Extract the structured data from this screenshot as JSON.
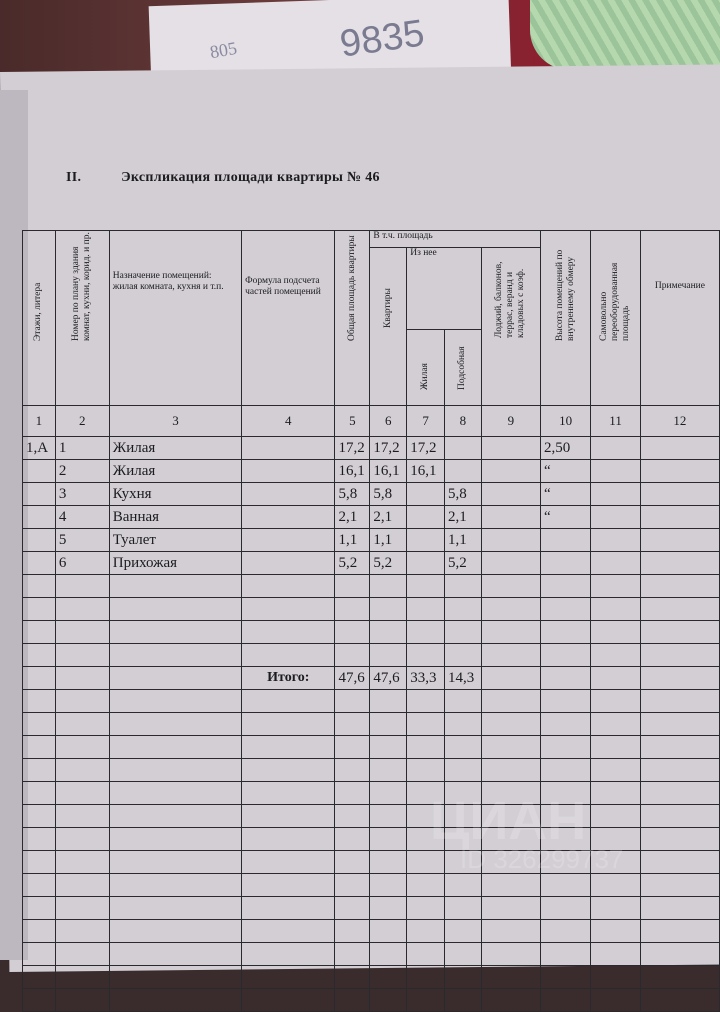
{
  "background": {
    "scribble": "9835",
    "scribble_small": "805"
  },
  "document": {
    "section_number": "II.",
    "title": "Экспликация площади квартиры № 46",
    "headers": {
      "c1": "Этажи, литера",
      "c2": "Номер по плану здания комнат, кухни, корид. и пр.",
      "c3": "Назначение помещений: жилая комната, кухня и т.п.",
      "c4": "Формула подсчета частей помещений",
      "c5": "Общая площадь квартиры",
      "group": "В т.ч. площадь",
      "c6": "Квартиры",
      "subgroup": "Из нее",
      "c7": "Жилая",
      "c8": "Подсобная",
      "c9": "Лоджий, балконов, террас, веранд и кладовых с коэф.",
      "c10": "Высота помещений по внутреннему обмеру",
      "c11": "Самовольно переоборудованная площадь",
      "c12": "Примечание"
    },
    "column_numbers": [
      "1",
      "2",
      "3",
      "4",
      "5",
      "6",
      "7",
      "8",
      "9",
      "10",
      "11",
      "12"
    ],
    "rows": [
      {
        "floor": "1,А",
        "no": "1",
        "name": "Жилая",
        "total": "17,2",
        "apt": "17,2",
        "living": "17,2",
        "aux": "",
        "height": "2,50"
      },
      {
        "floor": "",
        "no": "2",
        "name": "Жилая",
        "total": "16,1",
        "apt": "16,1",
        "living": "16,1",
        "aux": "",
        "height": "“"
      },
      {
        "floor": "",
        "no": "3",
        "name": "Кухня",
        "total": "5,8",
        "apt": "5,8",
        "living": "",
        "aux": "5,8",
        "height": "“"
      },
      {
        "floor": "",
        "no": "4",
        "name": "Ванная",
        "total": "2,1",
        "apt": "2,1",
        "living": "",
        "aux": "2,1",
        "height": "“"
      },
      {
        "floor": "",
        "no": "5",
        "name": "Туалет",
        "total": "1,1",
        "apt": "1,1",
        "living": "",
        "aux": "1,1",
        "height": ""
      },
      {
        "floor": "",
        "no": "6",
        "name": "Прихожая",
        "total": "5,2",
        "apt": "5,2",
        "living": "",
        "aux": "5,2",
        "height": ""
      }
    ],
    "total": {
      "label": "Итого:",
      "total": "47,6",
      "apt": "47,6",
      "living": "33,3",
      "aux": "14,3"
    }
  },
  "watermark": {
    "brand": "ЦИАН",
    "id": "ID 326299737"
  }
}
